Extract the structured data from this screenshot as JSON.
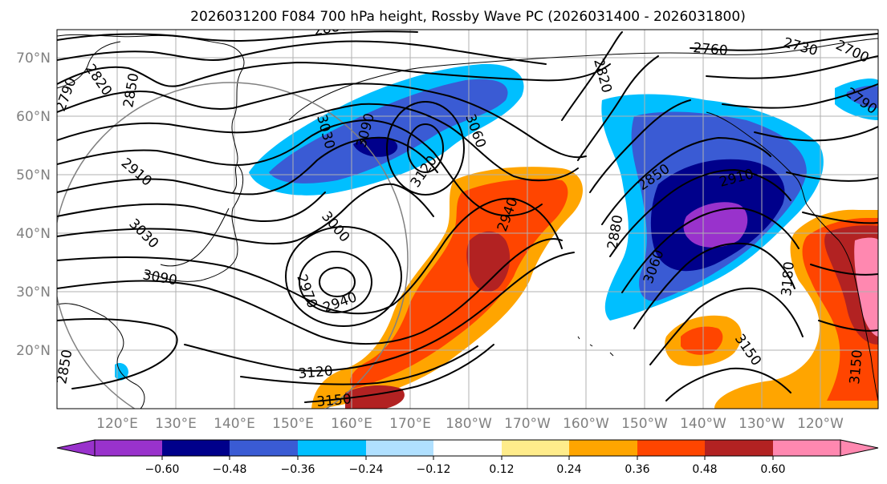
{
  "figure": {
    "title": "2026031200 F084 700 hPa height, Rossby Wave PC (2026031400 - 2026031800)"
  },
  "map": {
    "lon_labels": [
      "120°E",
      "130°E",
      "140°E",
      "150°E",
      "160°E",
      "170°E",
      "180°W",
      "170°W",
      "160°W",
      "150°W",
      "140°W",
      "130°W",
      "120°W"
    ],
    "lat_labels": [
      "70°N",
      "60°N",
      "50°N",
      "40°N",
      "30°N",
      "20°N"
    ],
    "contour_labels": [
      "2880",
      "2820",
      "2790",
      "2850",
      "2760",
      "2730",
      "2700",
      "2790",
      "2820",
      "3060",
      "3030",
      "3090",
      "3120",
      "2910",
      "3030",
      "3090",
      "3000",
      "2970",
      "2940",
      "2940",
      "2880",
      "2850",
      "2910",
      "3060",
      "3180",
      "3150",
      "3120",
      "3150",
      "3150",
      "2850"
    ]
  },
  "colorbar": {
    "ticks": [
      "−0.60",
      "−0.48",
      "−0.36",
      "−0.24",
      "−0.12",
      "0.12",
      "0.24",
      "0.36",
      "0.48",
      "0.60"
    ],
    "colors": [
      "#9932cc",
      "#00008b",
      "#3a5bd4",
      "#00bfff",
      "#b0e0ff",
      "#ffffff",
      "#ffec8b",
      "#ffa500",
      "#ff4500",
      "#b22222",
      "#ff88b0"
    ]
  },
  "colors": {
    "purple": "#9932cc",
    "navy": "#00008b",
    "royal": "#3a5bd4",
    "sky": "#00bfff",
    "light_blue": "#b0e0ff",
    "yellow": "#ffec8b",
    "orange": "#ffa500",
    "red_orange": "#ff4500",
    "dark_red": "#b22222",
    "pink": "#ff88b0"
  }
}
